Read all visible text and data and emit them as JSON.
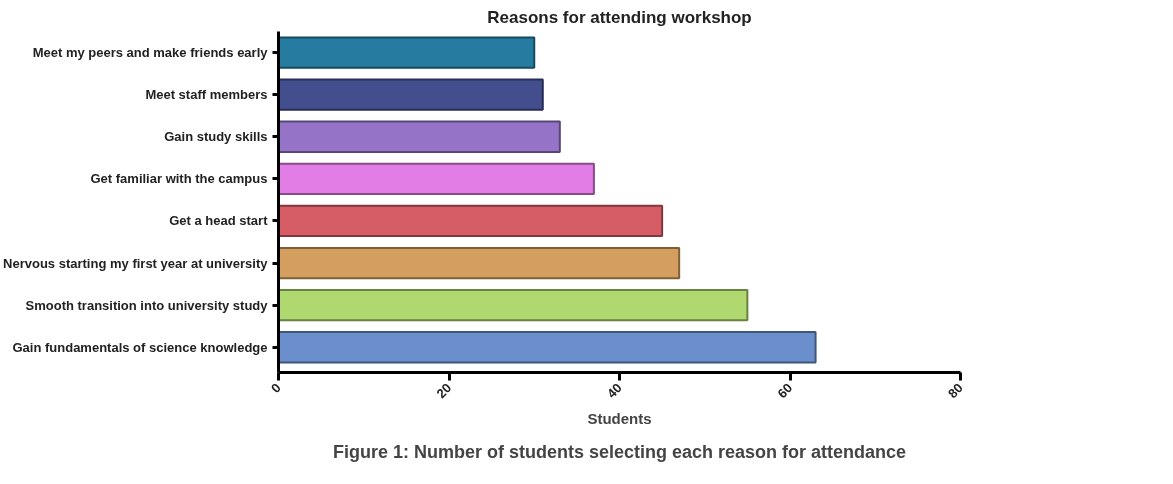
{
  "chart_data": {
    "type": "bar",
    "orientation": "horizontal",
    "title": "Reasons for attending workshop",
    "xlabel": "Students",
    "categories": [
      "Meet my peers and make friends early",
      "Meet staff members",
      "Gain study skills",
      "Get familiar with the campus",
      "Get a head start",
      "Nervous starting my first year at university",
      "Smooth transition into university study",
      "Gain fundamentals of science knowledge"
    ],
    "values": [
      30,
      31,
      33,
      37,
      45,
      47,
      55,
      63
    ],
    "colors": [
      "#267ba0",
      "#434e8e",
      "#9574c8",
      "#e27de6",
      "#d65c66",
      "#d49e5e",
      "#afd86e",
      "#6a8fcc"
    ],
    "xlim": [
      0,
      80
    ],
    "xticks": [
      0,
      20,
      40,
      60,
      80
    ],
    "grid": false,
    "annotations": [
      "Figure 1: Number of students selecting each reason for attendance"
    ]
  }
}
